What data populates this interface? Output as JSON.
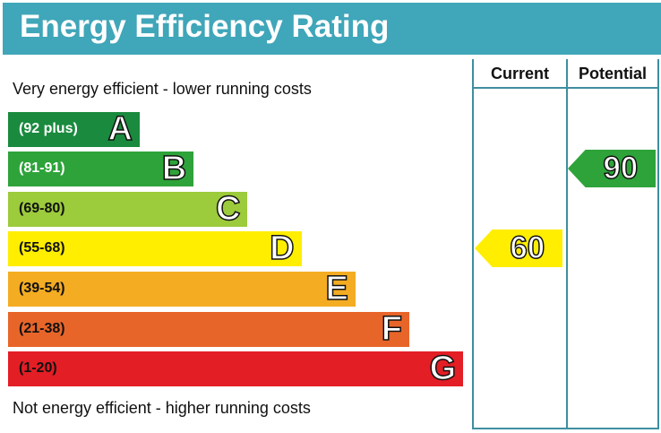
{
  "chart_data": {
    "type": "bar",
    "title": "Energy Efficiency Rating",
    "top_caption": "Very energy efficient - lower running costs",
    "bottom_caption": "Not energy efficient - higher running costs",
    "columns": [
      "Current",
      "Potential"
    ],
    "bands": [
      {
        "range": "(92 plus)",
        "letter": "A",
        "color": "#1a8a3e"
      },
      {
        "range": "(81-91)",
        "letter": "B",
        "color": "#2ea33a"
      },
      {
        "range": "(69-80)",
        "letter": "C",
        "color": "#9ccb3b"
      },
      {
        "range": "(55-68)",
        "letter": "D",
        "color": "#ffee00"
      },
      {
        "range": "(39-54)",
        "letter": "E",
        "color": "#f4ac22"
      },
      {
        "range": "(21-38)",
        "letter": "F",
        "color": "#e8652a"
      },
      {
        "range": "(1-20)",
        "letter": "G",
        "color": "#e31e25"
      }
    ],
    "current": {
      "value": "60",
      "band": "D",
      "color": "#ffee00"
    },
    "potential": {
      "value": "90",
      "band": "B",
      "color": "#2ea33a"
    }
  },
  "header_color": "#40a6b9"
}
